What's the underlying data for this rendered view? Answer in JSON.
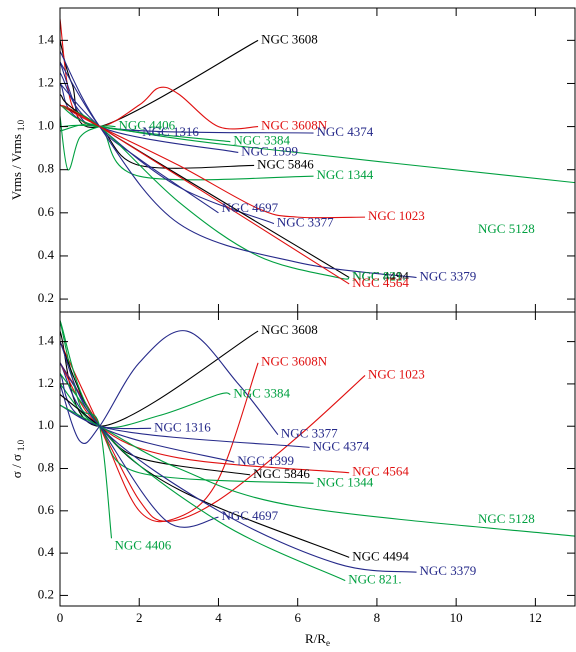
{
  "chart_data": [
    {
      "type": "line",
      "ylabel": "Vrms / Vrms",
      "ylabel_subscript": "1.0",
      "xlim": [
        0,
        13
      ],
      "ylim": [
        0.14,
        1.55
      ],
      "yticks": [
        0.2,
        0.4,
        0.6,
        0.8,
        {
          "value": 1,
          "label": "1.0"
        },
        1.2,
        1.4
      ],
      "series": [
        {
          "name": "NGC 3608",
          "color": "#000000",
          "x": [
            0,
            0.3,
            1,
            5
          ],
          "values": [
            1.4,
            1.2,
            1.0,
            1.4
          ]
        },
        {
          "name": "NGC 3608N",
          "color": "#e01010",
          "x": [
            0,
            0.3,
            1,
            2,
            2.5,
            3,
            4,
            5
          ],
          "values": [
            1.5,
            1.1,
            1.0,
            1.1,
            1.18,
            1.15,
            1.0,
            1.0
          ]
        },
        {
          "name": "NGC 4406",
          "color": "#00a040",
          "x": [
            0,
            0.2,
            0.5,
            1,
            1.4
          ],
          "values": [
            1.05,
            0.8,
            0.95,
            1.0,
            1.0
          ]
        },
        {
          "name": "NGC 1316",
          "color": "#262a8a",
          "x": [
            0,
            0.5,
            1,
            2
          ],
          "values": [
            1.3,
            1.05,
            1.0,
            0.98
          ]
        },
        {
          "name": "NGC 4374",
          "color": "#262a8a",
          "x": [
            0,
            1,
            6.4
          ],
          "values": [
            1.2,
            1.0,
            0.97
          ]
        },
        {
          "name": "NGC 3384",
          "color": "#00a040",
          "x": [
            0,
            1,
            4.3
          ],
          "values": [
            1.1,
            1.0,
            0.93
          ]
        },
        {
          "name": "NGC 1399",
          "color": "#262a8a",
          "x": [
            0,
            1,
            4.5
          ],
          "values": [
            1.25,
            1.0,
            0.88
          ]
        },
        {
          "name": "NGC 5846",
          "color": "#000000",
          "x": [
            0,
            1,
            2,
            4.9
          ],
          "values": [
            1.1,
            1.0,
            0.82,
            0.82
          ]
        },
        {
          "name": "NGC 1344",
          "color": "#00a040",
          "x": [
            0,
            1,
            2,
            6.4
          ],
          "values": [
            0.98,
            1.0,
            0.77,
            0.77
          ]
        },
        {
          "name": "NGC 5128",
          "color": "#00a040",
          "x": [
            0,
            1,
            4,
            13
          ],
          "values": [
            1.0,
            1.0,
            0.92,
            0.74
          ]
        },
        {
          "name": "NGC 1023",
          "color": "#e01010",
          "x": [
            0,
            1,
            3,
            5,
            6,
            7.7
          ],
          "values": [
            1.1,
            1.0,
            0.82,
            0.62,
            0.58,
            0.58
          ]
        },
        {
          "name": "NGC 4697",
          "color": "#262a8a",
          "x": [
            0,
            1,
            2,
            4
          ],
          "values": [
            1.3,
            1.0,
            0.85,
            0.6
          ]
        },
        {
          "name": "NGC 3377",
          "color": "#262a8a",
          "x": [
            0,
            1,
            3,
            5.4
          ],
          "values": [
            1.2,
            1.0,
            0.72,
            0.55
          ]
        },
        {
          "name": "NGC 4494",
          "color": "#000000",
          "x": [
            0,
            1,
            7.3
          ],
          "values": [
            1.15,
            1.0,
            0.3
          ]
        },
        {
          "name": "NGC 821.",
          "color": "#00a040",
          "x": [
            0,
            1,
            3,
            5,
            7,
            7.3
          ],
          "values": [
            1.1,
            1.0,
            0.65,
            0.4,
            0.3,
            0.3
          ]
        },
        {
          "name": "NGC 3379",
          "color": "#262a8a",
          "x": [
            0,
            1,
            3,
            6,
            9
          ],
          "values": [
            1.35,
            1.0,
            0.55,
            0.37,
            0.3
          ]
        },
        {
          "name": "NGC 4564",
          "color": "#e01010",
          "x": [
            0,
            1,
            7.3
          ],
          "values": [
            1.1,
            1.0,
            0.27
          ]
        }
      ]
    },
    {
      "type": "line",
      "xlabel": "R/R",
      "xlabel_subscript": "e",
      "ylabel": "σ / σ",
      "ylabel_subscript": "1.0",
      "xlim": [
        0,
        13
      ],
      "ylim": [
        0.15,
        1.54
      ],
      "xticks": [
        0,
        2,
        4,
        6,
        8,
        10,
        12
      ],
      "yticks": [
        0.2,
        0.4,
        0.6,
        0.8,
        {
          "value": 1,
          "label": "1.0"
        },
        1.2,
        1.4
      ],
      "series": [
        {
          "name": "NGC 3608",
          "color": "#000000",
          "x": [
            0,
            1,
            5
          ],
          "values": [
            1.45,
            1.0,
            1.45
          ]
        },
        {
          "name": "NGC 3608N",
          "color": "#e01010",
          "x": [
            0,
            1,
            2,
            3,
            4,
            5
          ],
          "values": [
            1.4,
            1.0,
            0.6,
            0.57,
            0.75,
            1.3
          ]
        },
        {
          "name": "NGC 3377",
          "color": "#262a8a",
          "x": [
            0,
            0.5,
            1,
            2,
            3.2,
            4.5,
            5.5
          ],
          "values": [
            1.2,
            0.93,
            1.0,
            1.3,
            1.45,
            1.2,
            0.96
          ]
        },
        {
          "name": "NGC 1023",
          "color": "#e01010",
          "x": [
            0,
            1,
            2,
            2.7,
            4,
            6,
            7.7
          ],
          "values": [
            1.3,
            1.0,
            0.65,
            0.55,
            0.65,
            0.95,
            1.24
          ]
        },
        {
          "name": "NGC 3384",
          "color": "#00a040",
          "x": [
            0,
            1,
            2.5,
            4,
            4.3
          ],
          "values": [
            1.2,
            1.0,
            1.05,
            1.15,
            1.15
          ]
        },
        {
          "name": "NGC 1316",
          "color": "#262a8a",
          "x": [
            0,
            1,
            2.3
          ],
          "values": [
            1.1,
            1.0,
            0.99
          ]
        },
        {
          "name": "NGC 4374",
          "color": "#262a8a",
          "x": [
            0,
            1,
            6.3
          ],
          "values": [
            1.25,
            1.0,
            0.9
          ]
        },
        {
          "name": "NGC 1399",
          "color": "#262a8a",
          "x": [
            0,
            1,
            4.4
          ],
          "values": [
            1.3,
            1.0,
            0.83
          ]
        },
        {
          "name": "NGC 4564",
          "color": "#e01010",
          "x": [
            0,
            1,
            3,
            7.3
          ],
          "values": [
            1.3,
            1.0,
            0.85,
            0.78
          ]
        },
        {
          "name": "NGC 5846",
          "color": "#000000",
          "x": [
            0,
            1,
            2,
            4.8
          ],
          "values": [
            1.15,
            1.0,
            0.85,
            0.77
          ]
        },
        {
          "name": "NGC 1344",
          "color": "#00a040",
          "x": [
            0,
            1,
            2,
            6.4
          ],
          "values": [
            1.25,
            1.0,
            0.78,
            0.73
          ]
        },
        {
          "name": "NGC 5128",
          "color": "#00a040",
          "x": [
            0,
            1,
            3,
            6,
            13
          ],
          "values": [
            1.1,
            1.0,
            0.8,
            0.62,
            0.48
          ]
        },
        {
          "name": "NGC 4697",
          "color": "#262a8a",
          "x": [
            0,
            1,
            2.7,
            4
          ],
          "values": [
            1.3,
            1.0,
            0.55,
            0.57
          ]
        },
        {
          "name": "NGC 4406",
          "color": "#00a040",
          "x": [
            0,
            0.5,
            1,
            1.3
          ],
          "values": [
            1.5,
            1.1,
            1.0,
            0.47
          ]
        },
        {
          "name": "NGC 4494",
          "color": "#000000",
          "x": [
            0,
            1,
            3,
            7.3
          ],
          "values": [
            1.4,
            1.0,
            0.7,
            0.38
          ]
        },
        {
          "name": "NGC 821.",
          "color": "#00a040",
          "x": [
            0,
            1,
            4,
            7.2
          ],
          "values": [
            1.5,
            1.0,
            0.55,
            0.27
          ]
        },
        {
          "name": "NGC 3379",
          "color": "#262a8a",
          "x": [
            0,
            1,
            4,
            7,
            9
          ],
          "values": [
            1.4,
            1.0,
            0.6,
            0.35,
            0.31
          ]
        }
      ]
    }
  ]
}
